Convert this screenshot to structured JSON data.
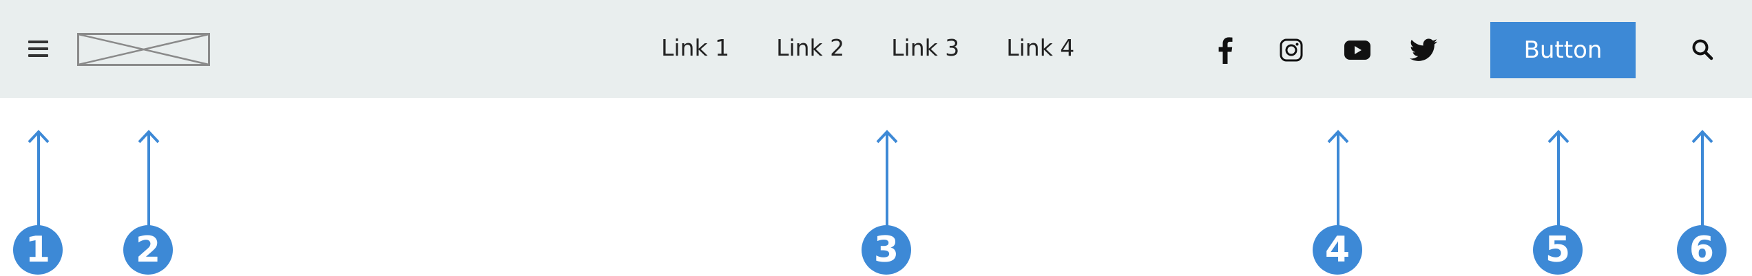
{
  "colors": {
    "header_bg": "#e9eeee",
    "accent": "#3d89d6",
    "text": "#222222"
  },
  "header": {
    "menu_icon": "hamburger-menu-icon",
    "logo_icon": "image-placeholder-icon",
    "nav_links": [
      "Link 1",
      "Link 2",
      "Link 3",
      "Link 4"
    ],
    "social_icons": [
      "facebook-icon",
      "instagram-icon",
      "youtube-icon",
      "twitter-icon"
    ],
    "button_label": "Button",
    "search_icon": "search-icon"
  },
  "annotations": [
    "1",
    "2",
    "3",
    "4",
    "5",
    "6"
  ]
}
